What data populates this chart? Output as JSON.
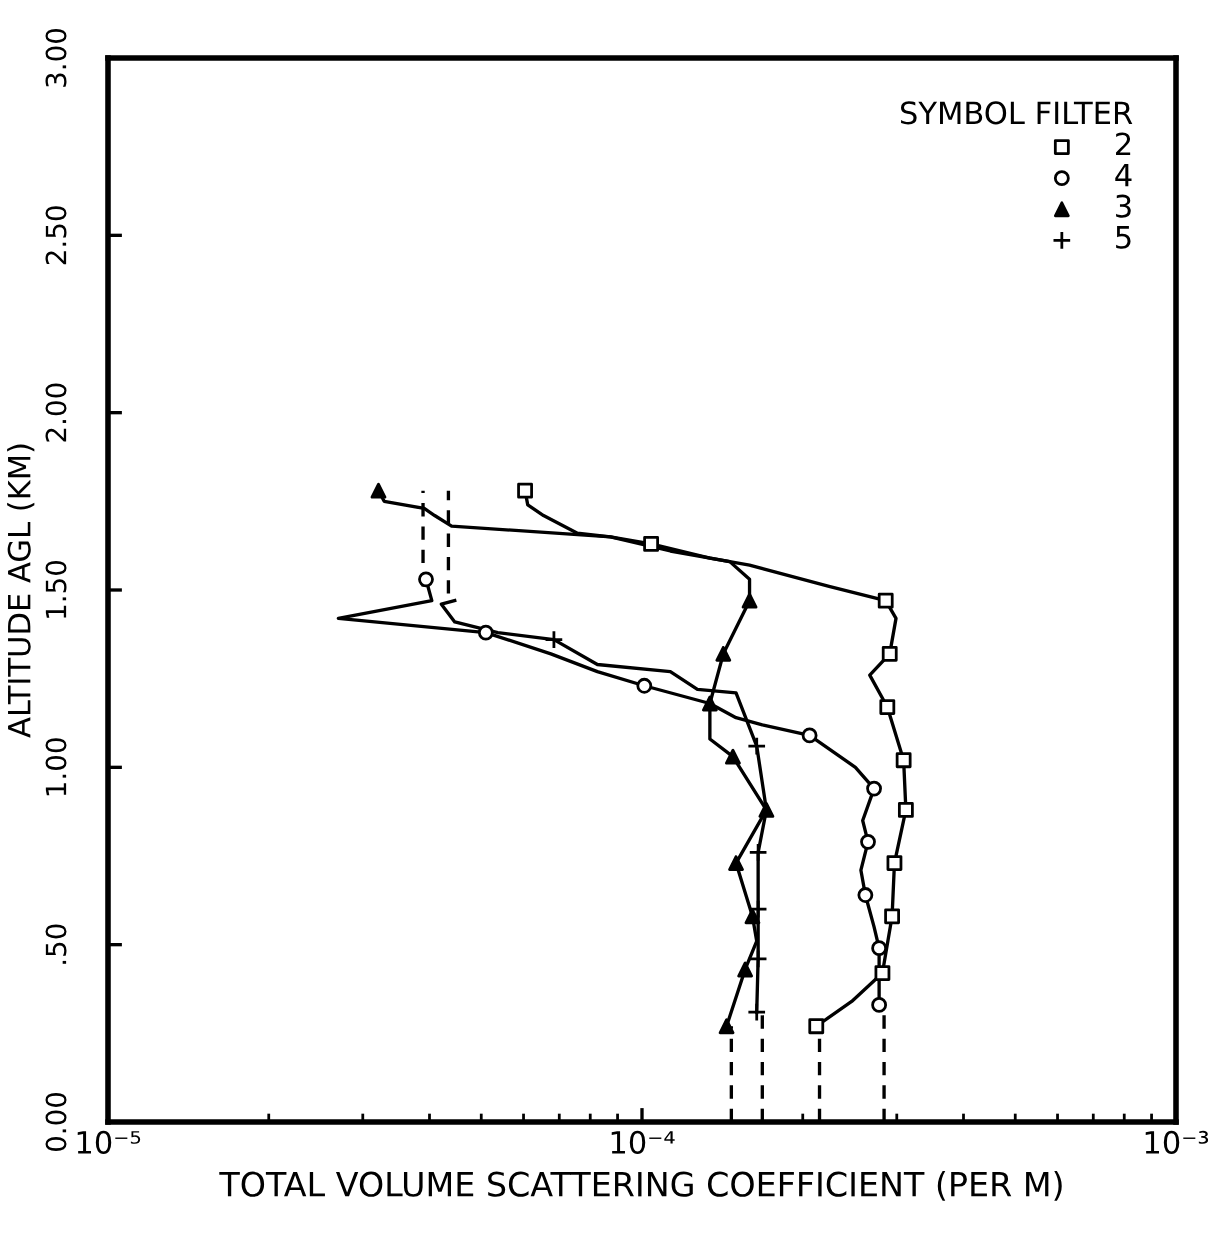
{
  "chart_data": {
    "type": "line",
    "xlabel": "TOTAL VOLUME SCATTERING COEFFICIENT (PER M)",
    "ylabel": "ALTITUDE AGL (KM)",
    "legend_title": "SYMBOL FILTER",
    "legend": "top right",
    "log": "x",
    "xlim": [
      1e-05,
      0.001
    ],
    "xticks": [
      {
        "value": 1e-05,
        "label": "10⁻⁵"
      },
      {
        "value": 0.0001,
        "label": "10⁻⁴"
      },
      {
        "value": 0.001,
        "label": "10⁻³"
      }
    ],
    "ylim": [
      0,
      3
    ],
    "yticks": [
      {
        "value": 0,
        "label": "0.00"
      },
      {
        "value": 0.5,
        "label": ".50"
      },
      {
        "value": 1,
        "label": "1.00"
      },
      {
        "value": 1.5,
        "label": "1.50"
      },
      {
        "value": 2,
        "label": "2.00"
      },
      {
        "value": 2.5,
        "label": "2.50"
      },
      {
        "value": 3,
        "label": "3.00"
      }
    ],
    "series": [
      {
        "color": "#000000",
        "line_style": "solid",
        "x": [
          0.000212,
          0.000247,
          0.000282,
          0.000294,
          0.000297,
          0.000312,
          0.000309,
          0.000288,
          0.000267,
          0.000291,
          0.000299,
          0.000286,
          0.000224,
          0.000159,
          0.000134,
          0.000104,
          8.73e-05,
          7.57e-05,
          6.54e-05,
          6.11e-05,
          6.04e-05
        ],
        "values": [
          0.27,
          0.34,
          0.42,
          0.58,
          0.73,
          0.88,
          1.02,
          1.17,
          1.26,
          1.32,
          1.42,
          1.47,
          1.51,
          1.57,
          1.59,
          1.63,
          1.65,
          1.66,
          1.71,
          1.74,
          1.78
        ]
      },
      {
        "color": "#000000",
        "line_style": "solid",
        "x": [
          0.000278,
          0.000278,
          0.000272,
          0.000262,
          0.000257,
          0.000265,
          0.000259,
          0.000272,
          0.000251,
          0.000206,
          0.000168,
          0.00015,
          0.000134,
          0.000101,
          8.25e-05,
          6.75e-05,
          5.1e-05,
          2.7e-05,
          4.04e-05,
          3.94e-05
        ],
        "values": [
          0.33,
          0.49,
          0.55,
          0.64,
          0.71,
          0.79,
          0.85,
          0.94,
          1.0,
          1.09,
          1.12,
          1.14,
          1.18,
          1.23,
          1.27,
          1.32,
          1.38,
          1.42,
          1.47,
          1.53
        ]
      },
      {
        "color": "#000000",
        "line_style": "solid",
        "x": [
          0.000144,
          0.000156,
          0.000164,
          0.000161,
          0.00015,
          0.000171,
          0.000148,
          0.000134,
          0.000134,
          0.000142,
          0.000159,
          0.000159,
          0.000146,
          0.000113,
          8.73e-05,
          4.4e-05,
          4.09e-05,
          3.91e-05,
          3.29e-05,
          3.21e-05
        ],
        "values": [
          0.27,
          0.43,
          0.51,
          0.58,
          0.73,
          0.88,
          1.03,
          1.08,
          1.18,
          1.32,
          1.47,
          1.53,
          1.58,
          1.61,
          1.65,
          1.68,
          1.71,
          1.73,
          1.75,
          1.78
        ]
      },
      {
        "color": "#000000",
        "line_style": "solid",
        "x": [
          0.000164,
          0.000165,
          0.000165,
          0.000165,
          0.000171,
          0.000164,
          0.00015,
          0.000127,
          0.000113,
          8.25e-05,
          6.84e-05,
          5.37e-05,
          4.46e-05,
          4.21e-05,
          4.46e-05
        ],
        "values": [
          0.31,
          0.46,
          0.6,
          0.76,
          0.88,
          1.06,
          1.21,
          1.22,
          1.27,
          1.29,
          1.36,
          1.38,
          1.41,
          1.46,
          1.47
        ]
      },
      {
        "color": "#000000",
        "line_style": "dashed",
        "x": [
          0.000215,
          0.000215
        ],
        "values": [
          0,
          0.27
        ]
      },
      {
        "color": "#000000",
        "line_style": "dashed",
        "x": [
          0.000284,
          0.000284
        ],
        "values": [
          0,
          0.33
        ]
      },
      {
        "color": "#000000",
        "line_style": "dashed",
        "x": [
          0.000147,
          0.000147
        ],
        "values": [
          0,
          0.27
        ]
      },
      {
        "color": "#000000",
        "line_style": "dashed",
        "x": [
          0.000168,
          0.000168
        ],
        "values": [
          0,
          0.31
        ]
      },
      {
        "color": "#000000",
        "line_style": "dashed",
        "x": [
          3.89e-05,
          3.89e-05
        ],
        "values": [
          1.51,
          1.78
        ]
      },
      {
        "color": "#000000",
        "line_style": "dashed",
        "x": [
          4.34e-05,
          4.34e-05
        ],
        "values": [
          1.49,
          1.78
        ]
      },
      {
        "type": "scatter",
        "name": "2",
        "marker": "square",
        "color": "#000000",
        "x": [
          0.000212,
          0.000282,
          0.000294,
          0.000297,
          0.000312,
          0.000309,
          0.000288,
          0.000291,
          0.000286,
          0.000104,
          6.04e-05
        ],
        "values": [
          0.27,
          0.42,
          0.58,
          0.73,
          0.88,
          1.02,
          1.17,
          1.32,
          1.47,
          1.63,
          1.78
        ]
      },
      {
        "type": "scatter",
        "name": "4",
        "marker": "circle",
        "color": "#000000",
        "x": [
          0.000278,
          0.000278,
          0.000262,
          0.000265,
          0.000272,
          0.000206,
          0.000101,
          5.1e-05,
          3.94e-05
        ],
        "values": [
          0.33,
          0.49,
          0.64,
          0.79,
          0.94,
          1.09,
          1.23,
          1.38,
          1.53
        ]
      },
      {
        "type": "scatter",
        "name": "3",
        "marker": "triangle",
        "color": "#000000",
        "x": [
          0.000144,
          0.000156,
          0.000161,
          0.00015,
          0.000171,
          0.000148,
          0.000134,
          0.000142,
          0.000159,
          3.21e-05
        ],
        "values": [
          0.27,
          0.43,
          0.58,
          0.73,
          0.88,
          1.03,
          1.18,
          1.32,
          1.47,
          1.78
        ]
      },
      {
        "type": "scatter",
        "name": "5",
        "marker": "cross",
        "color": "#000000",
        "x": [
          0.000164,
          0.000165,
          0.000165,
          0.000165,
          0.000164,
          6.84e-05
        ],
        "values": [
          0.31,
          0.46,
          0.6,
          0.76,
          1.06,
          1.36
        ]
      }
    ]
  }
}
